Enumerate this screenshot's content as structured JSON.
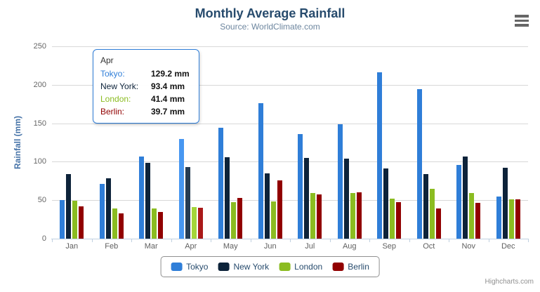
{
  "header": {
    "title": "Monthly Average Rainfall",
    "subtitle": "Source: WorldClimate.com"
  },
  "icons": {
    "context_menu": "hamburger-menu-icon"
  },
  "chart_data": {
    "type": "bar",
    "title": "Monthly Average Rainfall",
    "subtitle": "Source: WorldClimate.com",
    "categories": [
      "Jan",
      "Feb",
      "Mar",
      "Apr",
      "May",
      "Jun",
      "Jul",
      "Aug",
      "Sep",
      "Oct",
      "Nov",
      "Dec"
    ],
    "series": [
      {
        "name": "Tokyo",
        "color": "#2f7ed8",
        "values": [
          49.9,
          71.5,
          106.4,
          129.2,
          144.0,
          176.0,
          135.6,
          148.5,
          216.4,
          194.1,
          95.6,
          54.4
        ]
      },
      {
        "name": "New York",
        "color": "#0d233a",
        "values": [
          83.6,
          78.8,
          98.5,
          93.4,
          106.0,
          84.5,
          105.0,
          104.3,
          91.2,
          83.5,
          106.6,
          92.3
        ]
      },
      {
        "name": "London",
        "color": "#8bbc21",
        "values": [
          48.9,
          38.8,
          39.3,
          41.4,
          47.0,
          48.3,
          59.0,
          59.6,
          52.4,
          65.2,
          59.3,
          51.2
        ]
      },
      {
        "name": "Berlin",
        "color": "#910000",
        "values": [
          42.4,
          33.2,
          34.5,
          39.7,
          52.6,
          75.5,
          57.4,
          60.4,
          47.6,
          39.1,
          46.8,
          51.1
        ]
      }
    ],
    "xlabel": "",
    "ylabel": "Rainfall (mm)",
    "ylim": [
      0,
      250
    ],
    "yticks": [
      0,
      50,
      100,
      150,
      200,
      250
    ],
    "grid": true,
    "legend_position": "bottom",
    "hovered_category": "Apr"
  },
  "tooltip": {
    "header": "Apr",
    "rows": [
      {
        "label": "Tokyo:",
        "value": "129.2 mm",
        "color": "#2f7ed8"
      },
      {
        "label": "New York:",
        "value": "93.4 mm",
        "color": "#0d233a"
      },
      {
        "label": "London:",
        "value": "41.4 mm",
        "color": "#8bbc21"
      },
      {
        "label": "Berlin:",
        "value": "39.7 mm",
        "color": "#910000"
      }
    ]
  },
  "credits": {
    "label": "Highcharts.com"
  },
  "colors": {
    "title": "#274b6d",
    "subtitle": "#6d869f",
    "yaxis_title": "#4572a7",
    "axis_line": "#c0d0e0",
    "grid_line": "#d8d8d8",
    "axis_label": "#606060",
    "legend_border": "#909090",
    "tooltip_border": "#2f7ed8",
    "credits_text": "#909090"
  }
}
